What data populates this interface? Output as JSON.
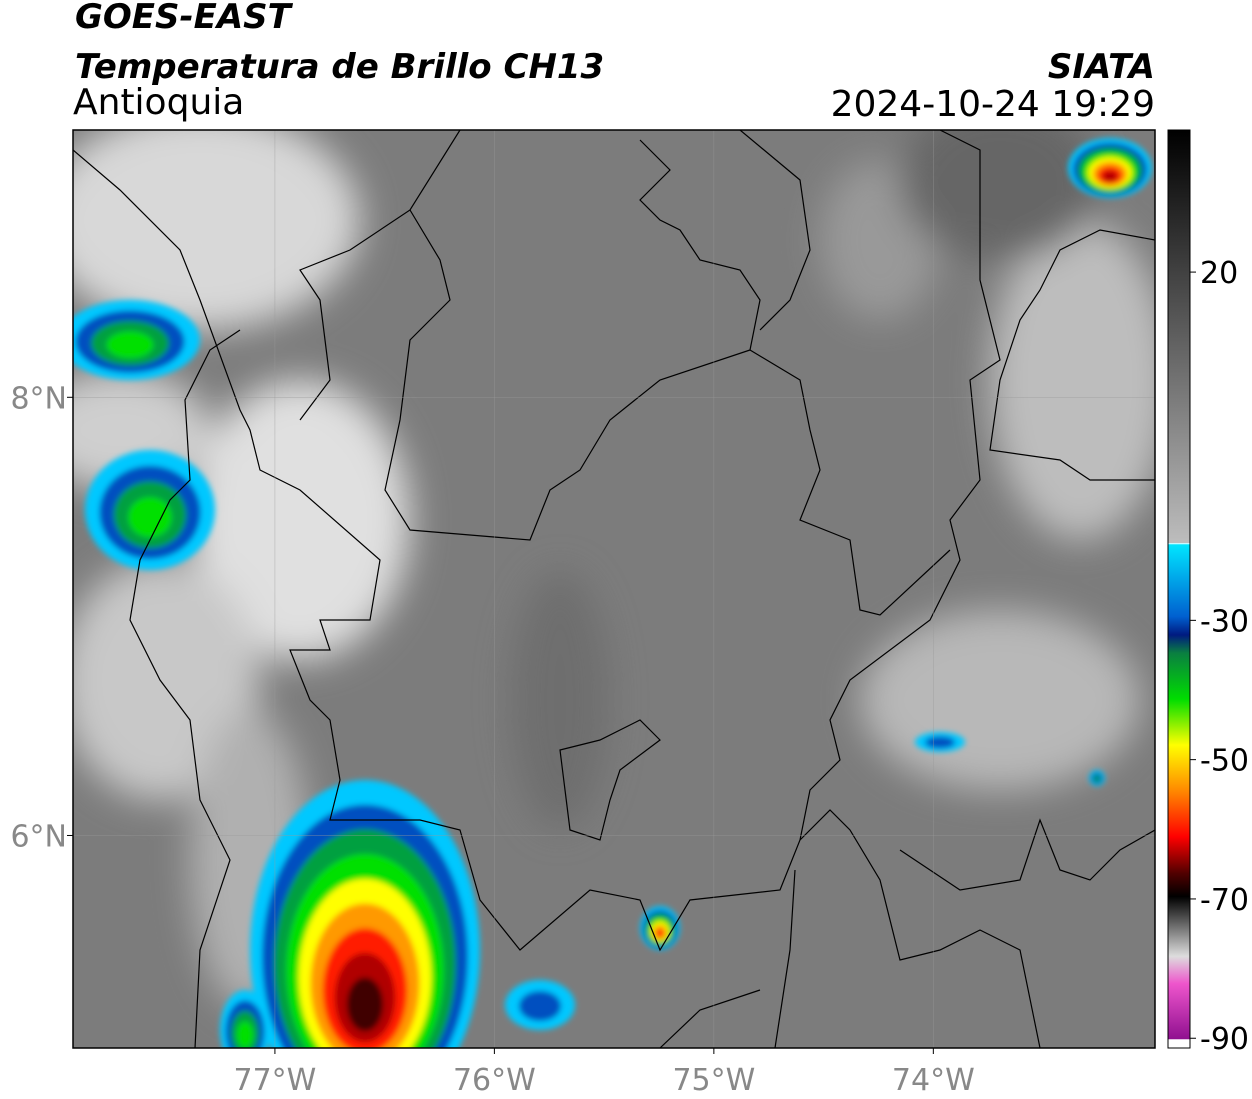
{
  "header": {
    "title": "GOES-EAST",
    "subtitle": "Temperatura de Brillo CH13",
    "region": "Antioquia",
    "source": "SIATA",
    "datetime": "2024-10-24 19:29"
  },
  "map": {
    "xlim": [
      -77.92,
      -72.99
    ],
    "ylim": [
      5.03,
      9.22
    ],
    "xticks": [
      {
        "value": -77,
        "label": "77°W"
      },
      {
        "value": -76,
        "label": "76°W"
      },
      {
        "value": -75,
        "label": "75°W"
      },
      {
        "value": -74,
        "label": "74°W"
      }
    ],
    "yticks": [
      {
        "value": 8,
        "label": "8°N"
      },
      {
        "value": 6,
        "label": "6°N"
      }
    ],
    "grid": true
  },
  "colorbar": {
    "lim": [
      -91.4,
      40.4
    ],
    "ticks": [
      20,
      -30,
      -50,
      -70,
      -90
    ]
  }
}
